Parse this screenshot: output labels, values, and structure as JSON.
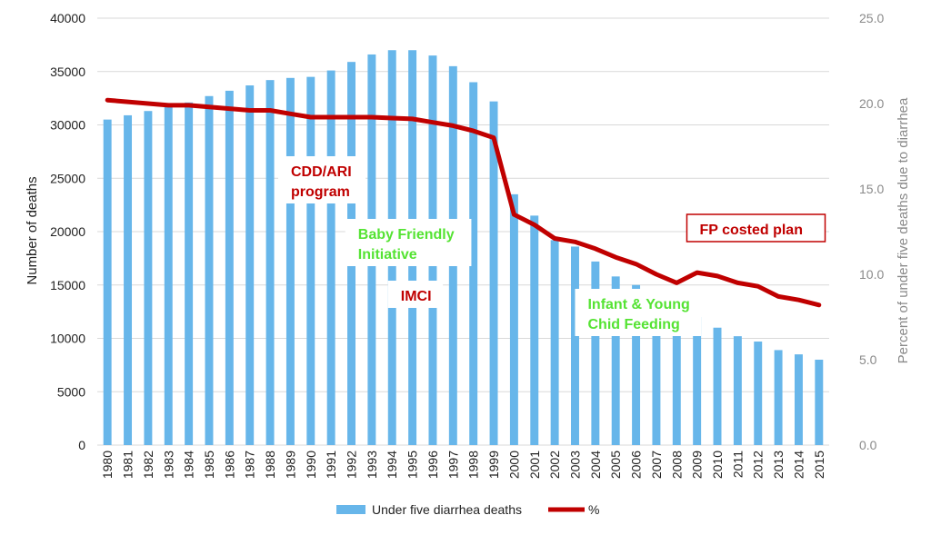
{
  "chart_data": {
    "type": "bar+line",
    "categories": [
      "1980",
      "1981",
      "1982",
      "1983",
      "1984",
      "1985",
      "1986",
      "1987",
      "1988",
      "1989",
      "1990",
      "1991",
      "1992",
      "1993",
      "1994",
      "1995",
      "1996",
      "1997",
      "1998",
      "1999",
      "2000",
      "2001",
      "2002",
      "2003",
      "2004",
      "2005",
      "2006",
      "2007",
      "2008",
      "2009",
      "2010",
      "2011",
      "2012",
      "2013",
      "2014",
      "2015"
    ],
    "series": [
      {
        "name": "Under five diarrhea deaths",
        "type": "bar",
        "axis": "left",
        "color": "#67b6ea",
        "values": [
          30500,
          30900,
          31300,
          31700,
          32100,
          32700,
          33200,
          33700,
          34200,
          34400,
          34500,
          35100,
          35900,
          36600,
          37000,
          37000,
          36500,
          35500,
          34000,
          32200,
          23500,
          21500,
          19200,
          18600,
          17200,
          15800,
          15000,
          14200,
          13000,
          12000,
          11000,
          10200,
          9700,
          8900,
          8500,
          8000
        ]
      },
      {
        "name": "%",
        "type": "line",
        "axis": "right",
        "color": "#c00000",
        "values": [
          20.2,
          20.1,
          20.0,
          19.9,
          19.9,
          19.8,
          19.7,
          19.6,
          19.6,
          19.4,
          19.2,
          19.2,
          19.2,
          19.2,
          19.15,
          19.1,
          18.9,
          18.7,
          18.4,
          18.0,
          13.5,
          12.9,
          12.1,
          11.9,
          11.5,
          11.0,
          10.6,
          10.0,
          9.5,
          10.1,
          9.9,
          9.5,
          9.3,
          8.7,
          8.5,
          8.2
        ]
      }
    ],
    "ylabel": "Number of deaths",
    "ylabel_right": "Percent of under five deaths due to diarrhea",
    "ylim": [
      0,
      40000
    ],
    "yticks": [
      "0",
      "5000",
      "10000",
      "15000",
      "20000",
      "25000",
      "30000",
      "35000",
      "40000"
    ],
    "ylim_right": [
      0,
      25
    ],
    "yticks_right": [
      "0.0",
      "5.0",
      "10.0",
      "15.0",
      "20.0",
      "25.0"
    ],
    "grid": true,
    "legend_position": "bottom",
    "legend": [
      "Under five diarrhea deaths",
      "%"
    ],
    "annotations": [
      {
        "text": [
          "CDD/ARI",
          "program"
        ],
        "color": "#c00000",
        "border": false
      },
      {
        "text": [
          "Baby Friendly",
          "Initiative"
        ],
        "color": "#55e333",
        "border": false
      },
      {
        "text": [
          "IMCI"
        ],
        "color": "#c00000",
        "border": false
      },
      {
        "text": [
          "Infant & Young",
          "Chid Feeding"
        ],
        "color": "#55e333",
        "border": false
      },
      {
        "text": [
          "FP costed plan"
        ],
        "color": "#c00000",
        "border": true
      }
    ]
  }
}
